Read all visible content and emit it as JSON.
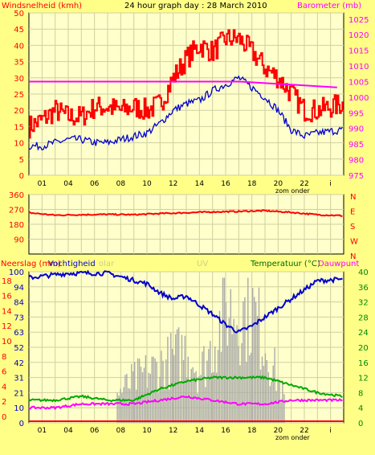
{
  "chart_data": [
    {
      "type": "line",
      "title": "24 hour graph day : 28 March 2010",
      "left_axis_label": "Windsnelheid (kmh)",
      "right_axis_label": "Barometer (mb)",
      "x_ticks": [
        "01",
        "04",
        "06",
        "08",
        "10",
        "12",
        "14",
        "16",
        "18",
        "20",
        "22",
        "i"
      ],
      "x_caption": "zom onder",
      "left_ticks": [
        "0",
        "5",
        "10",
        "15",
        "20",
        "25",
        "30",
        "35",
        "40",
        "45",
        "50"
      ],
      "right_ticks": [
        "975",
        "980",
        "985",
        "990",
        "995",
        "1000",
        "1005",
        "1010",
        "1015",
        "1020",
        "1025"
      ],
      "ylim_left": [
        0,
        50
      ],
      "ylim_right": [
        975,
        1027
      ],
      "series": [
        {
          "color": "#ff0000",
          "hours": [
            0,
            1,
            2,
            3,
            4,
            5,
            6,
            7,
            8,
            9,
            10,
            11,
            12,
            13,
            14,
            15,
            16,
            17,
            18,
            19,
            20,
            21,
            22,
            23.9
          ],
          "values": [
            15,
            17,
            20,
            18,
            18,
            21,
            21,
            20,
            21,
            20,
            22,
            30,
            36,
            40,
            38,
            42,
            42,
            38,
            33,
            30,
            25,
            20,
            20,
            22
          ]
        },
        {
          "color": "#0000cc",
          "hours": [
            0,
            1,
            2,
            3,
            4,
            5,
            6,
            7,
            8,
            9,
            10,
            11,
            12,
            13,
            14,
            15,
            16,
            17,
            18,
            19,
            20,
            21,
            22,
            23.9
          ],
          "values": [
            9,
            9,
            10,
            11,
            11,
            10,
            10,
            11,
            12,
            13,
            16,
            20,
            22,
            23,
            26,
            28,
            30,
            27,
            24,
            20,
            14,
            12,
            13,
            14
          ]
        },
        {
          "color": "#ff00ff",
          "axis": "right",
          "hours": [
            0,
            6,
            12,
            16,
            20,
            23.9
          ],
          "values": [
            1005,
            1005,
            1005,
            1005,
            1004,
            1003
          ]
        }
      ]
    },
    {
      "type": "line",
      "left_ticks": [
        "90",
        "180",
        "270",
        "360"
      ],
      "right_ticks": [
        "N",
        "E",
        "S",
        "W",
        "N"
      ],
      "ylim": [
        0,
        360
      ],
      "series": [
        {
          "color": "#ff0000",
          "hours": [
            0,
            2,
            4,
            6,
            8,
            10,
            12,
            14,
            16,
            18,
            20,
            22,
            23.9
          ],
          "values": [
            250,
            235,
            238,
            240,
            238,
            245,
            250,
            255,
            258,
            262,
            252,
            238,
            232
          ]
        }
      ]
    },
    {
      "type": "line",
      "left_axis_label": "Neerslag (mm)",
      "humidity_label": "Vochtigheid",
      "solar_label": "olar",
      "uv_label": "UV",
      "right_axis_label": "Temperatuur (°C)",
      "dewpoint_label": "Dauwpunt",
      "x_ticks": [
        "01",
        "04",
        "06",
        "08",
        "10",
        "12",
        "14",
        "16",
        "18",
        "20",
        "22",
        "i"
      ],
      "x_caption": "zom onder",
      "left_ticks": [
        "0",
        "10",
        "21",
        "31",
        "42",
        "52",
        "63",
        "73",
        "84",
        "94",
        "100"
      ],
      "left_ticks2": [
        "0",
        "2",
        "4",
        "6",
        "8",
        "10",
        "12",
        "14",
        "16",
        "18"
      ],
      "right_ticks": [
        "0",
        "4",
        "8",
        "12",
        "16",
        "20",
        "24",
        "28",
        "32",
        "36",
        "40"
      ],
      "ylim_left": [
        0,
        100
      ],
      "ylim_right": [
        0,
        40
      ],
      "series": [
        {
          "color": "#0000cc",
          "name": "Vochtigheid",
          "hours": [
            0,
            3,
            6,
            9,
            10,
            11,
            12,
            13,
            14,
            15,
            16,
            17,
            18,
            19,
            20,
            21,
            22,
            23.9
          ],
          "values": [
            96,
            99,
            99,
            92,
            86,
            82,
            84,
            78,
            72,
            65,
            60,
            64,
            70,
            76,
            82,
            88,
            94,
            95
          ]
        },
        {
          "color": "#00aa00",
          "axis": "right",
          "hours": [
            0,
            2,
            4,
            6,
            8,
            10,
            12,
            14,
            16,
            18,
            20,
            22,
            23.9
          ],
          "values": [
            6,
            6,
            7,
            6,
            6,
            9,
            11,
            12,
            12,
            12,
            10,
            8,
            7
          ]
        },
        {
          "color": "#ff00ff",
          "axis": "right",
          "hours": [
            0,
            2,
            4,
            6,
            8,
            10,
            12,
            14,
            16,
            18,
            20,
            22,
            23.9
          ],
          "values": [
            4,
            4,
            5,
            5,
            5,
            6,
            7,
            6,
            5,
            5,
            6,
            6,
            6
          ]
        },
        {
          "color": "#aaaaaa",
          "kind": "solar_bars",
          "hours": [
            6.7,
            8,
            9,
            10,
            11,
            12,
            13,
            14,
            15,
            16,
            17,
            18,
            19.5
          ],
          "values": [
            20,
            30,
            35,
            40,
            45,
            52,
            35,
            55,
            80,
            75,
            78,
            55,
            15
          ]
        }
      ]
    }
  ]
}
